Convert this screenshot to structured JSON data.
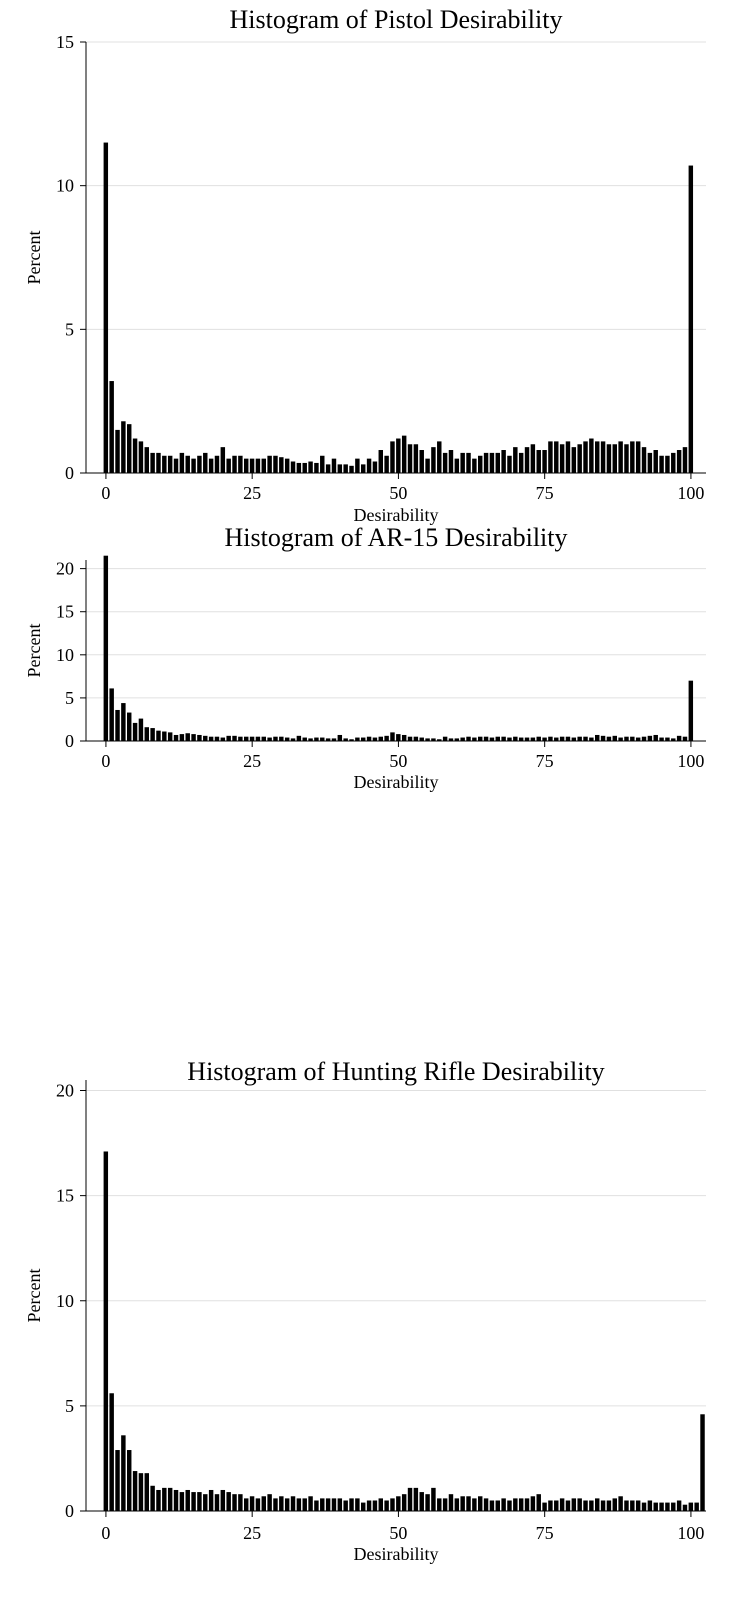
{
  "chart_data": [
    {
      "type": "bar",
      "title": "Histogram of Pistol Desirability",
      "xlabel": "Desirability",
      "ylabel": "Percent",
      "xlim": [
        0,
        100
      ],
      "ylim": [
        0,
        15
      ],
      "xticks": [
        0,
        25,
        50,
        75,
        100
      ],
      "yticks": [
        0,
        5,
        10,
        15
      ],
      "grid": true,
      "bin_width": 1,
      "values": [
        11.5,
        3.2,
        1.5,
        1.8,
        1.7,
        1.2,
        1.1,
        0.9,
        0.7,
        0.7,
        0.6,
        0.6,
        0.5,
        0.7,
        0.6,
        0.5,
        0.6,
        0.7,
        0.5,
        0.6,
        0.9,
        0.5,
        0.6,
        0.6,
        0.5,
        0.5,
        0.5,
        0.5,
        0.6,
        0.6,
        0.55,
        0.5,
        0.4,
        0.35,
        0.35,
        0.4,
        0.35,
        0.6,
        0.3,
        0.5,
        0.3,
        0.3,
        0.25,
        0.5,
        0.3,
        0.5,
        0.4,
        0.8,
        0.6,
        1.1,
        1.2,
        1.3,
        1.0,
        1.0,
        0.8,
        0.5,
        0.9,
        1.1,
        0.7,
        0.8,
        0.5,
        0.7,
        0.7,
        0.5,
        0.6,
        0.7,
        0.7,
        0.7,
        0.8,
        0.6,
        0.9,
        0.7,
        0.9,
        1.0,
        0.8,
        0.8,
        1.1,
        1.1,
        1.0,
        1.1,
        0.9,
        1.0,
        1.1,
        1.2,
        1.1,
        1.1,
        1.0,
        1.0,
        1.1,
        1.0,
        1.1,
        1.1,
        0.9,
        0.7,
        0.8,
        0.6,
        0.6,
        0.7,
        0.8,
        0.9,
        10.7
      ]
    },
    {
      "type": "bar",
      "title": "Histogram of AR-15 Desirability",
      "xlabel": "Desirability",
      "ylabel": "Percent",
      "xlim": [
        0,
        100
      ],
      "ylim": [
        0,
        21
      ],
      "xticks": [
        0,
        25,
        50,
        75,
        100
      ],
      "yticks": [
        0,
        5,
        10,
        15,
        20
      ],
      "grid": true,
      "bin_width": 1,
      "values": [
        21.5,
        6.1,
        3.6,
        4.4,
        3.3,
        2.1,
        2.6,
        1.6,
        1.5,
        1.2,
        1.1,
        1.0,
        0.7,
        0.8,
        0.9,
        0.8,
        0.7,
        0.6,
        0.5,
        0.5,
        0.4,
        0.6,
        0.6,
        0.5,
        0.5,
        0.5,
        0.5,
        0.5,
        0.4,
        0.5,
        0.5,
        0.4,
        0.3,
        0.6,
        0.4,
        0.3,
        0.4,
        0.4,
        0.3,
        0.3,
        0.7,
        0.3,
        0.2,
        0.4,
        0.4,
        0.5,
        0.4,
        0.5,
        0.6,
        1.0,
        0.8,
        0.7,
        0.5,
        0.5,
        0.4,
        0.3,
        0.3,
        0.2,
        0.5,
        0.3,
        0.3,
        0.4,
        0.5,
        0.4,
        0.5,
        0.5,
        0.4,
        0.5,
        0.5,
        0.4,
        0.5,
        0.4,
        0.4,
        0.4,
        0.5,
        0.4,
        0.5,
        0.4,
        0.5,
        0.5,
        0.4,
        0.5,
        0.5,
        0.4,
        0.7,
        0.6,
        0.5,
        0.6,
        0.4,
        0.5,
        0.5,
        0.4,
        0.5,
        0.6,
        0.7,
        0.4,
        0.4,
        0.3,
        0.6,
        0.5,
        7.0
      ]
    },
    {
      "type": "bar",
      "title": "Histogram of Hunting Rifle Desirability",
      "xlabel": "Desirability",
      "ylabel": "Percent",
      "xlim": [
        0,
        100
      ],
      "ylim": [
        0,
        20.5
      ],
      "xticks": [
        0,
        25,
        50,
        75,
        100
      ],
      "yticks": [
        0,
        5,
        10,
        15,
        20
      ],
      "grid": true,
      "bin_width": 1,
      "values": [
        17.1,
        5.6,
        2.9,
        3.6,
        2.9,
        1.9,
        1.8,
        1.8,
        1.2,
        1.0,
        1.1,
        1.1,
        1.0,
        0.9,
        1.0,
        0.9,
        0.9,
        0.8,
        1.0,
        0.8,
        1.0,
        0.9,
        0.8,
        0.8,
        0.6,
        0.7,
        0.6,
        0.7,
        0.8,
        0.6,
        0.7,
        0.6,
        0.7,
        0.6,
        0.6,
        0.7,
        0.5,
        0.6,
        0.6,
        0.6,
        0.6,
        0.5,
        0.6,
        0.6,
        0.4,
        0.5,
        0.5,
        0.6,
        0.5,
        0.6,
        0.7,
        0.8,
        1.1,
        1.1,
        0.9,
        0.8,
        1.1,
        0.6,
        0.6,
        0.8,
        0.6,
        0.7,
        0.7,
        0.6,
        0.7,
        0.6,
        0.5,
        0.5,
        0.6,
        0.5,
        0.6,
        0.6,
        0.6,
        0.7,
        0.8,
        0.4,
        0.5,
        0.5,
        0.6,
        0.5,
        0.6,
        0.6,
        0.5,
        0.5,
        0.6,
        0.5,
        0.5,
        0.6,
        0.7,
        0.5,
        0.5,
        0.5,
        0.4,
        0.5,
        0.4,
        0.4,
        0.4,
        0.4,
        0.5,
        0.3,
        0.4,
        0.4,
        4.6
      ]
    }
  ]
}
